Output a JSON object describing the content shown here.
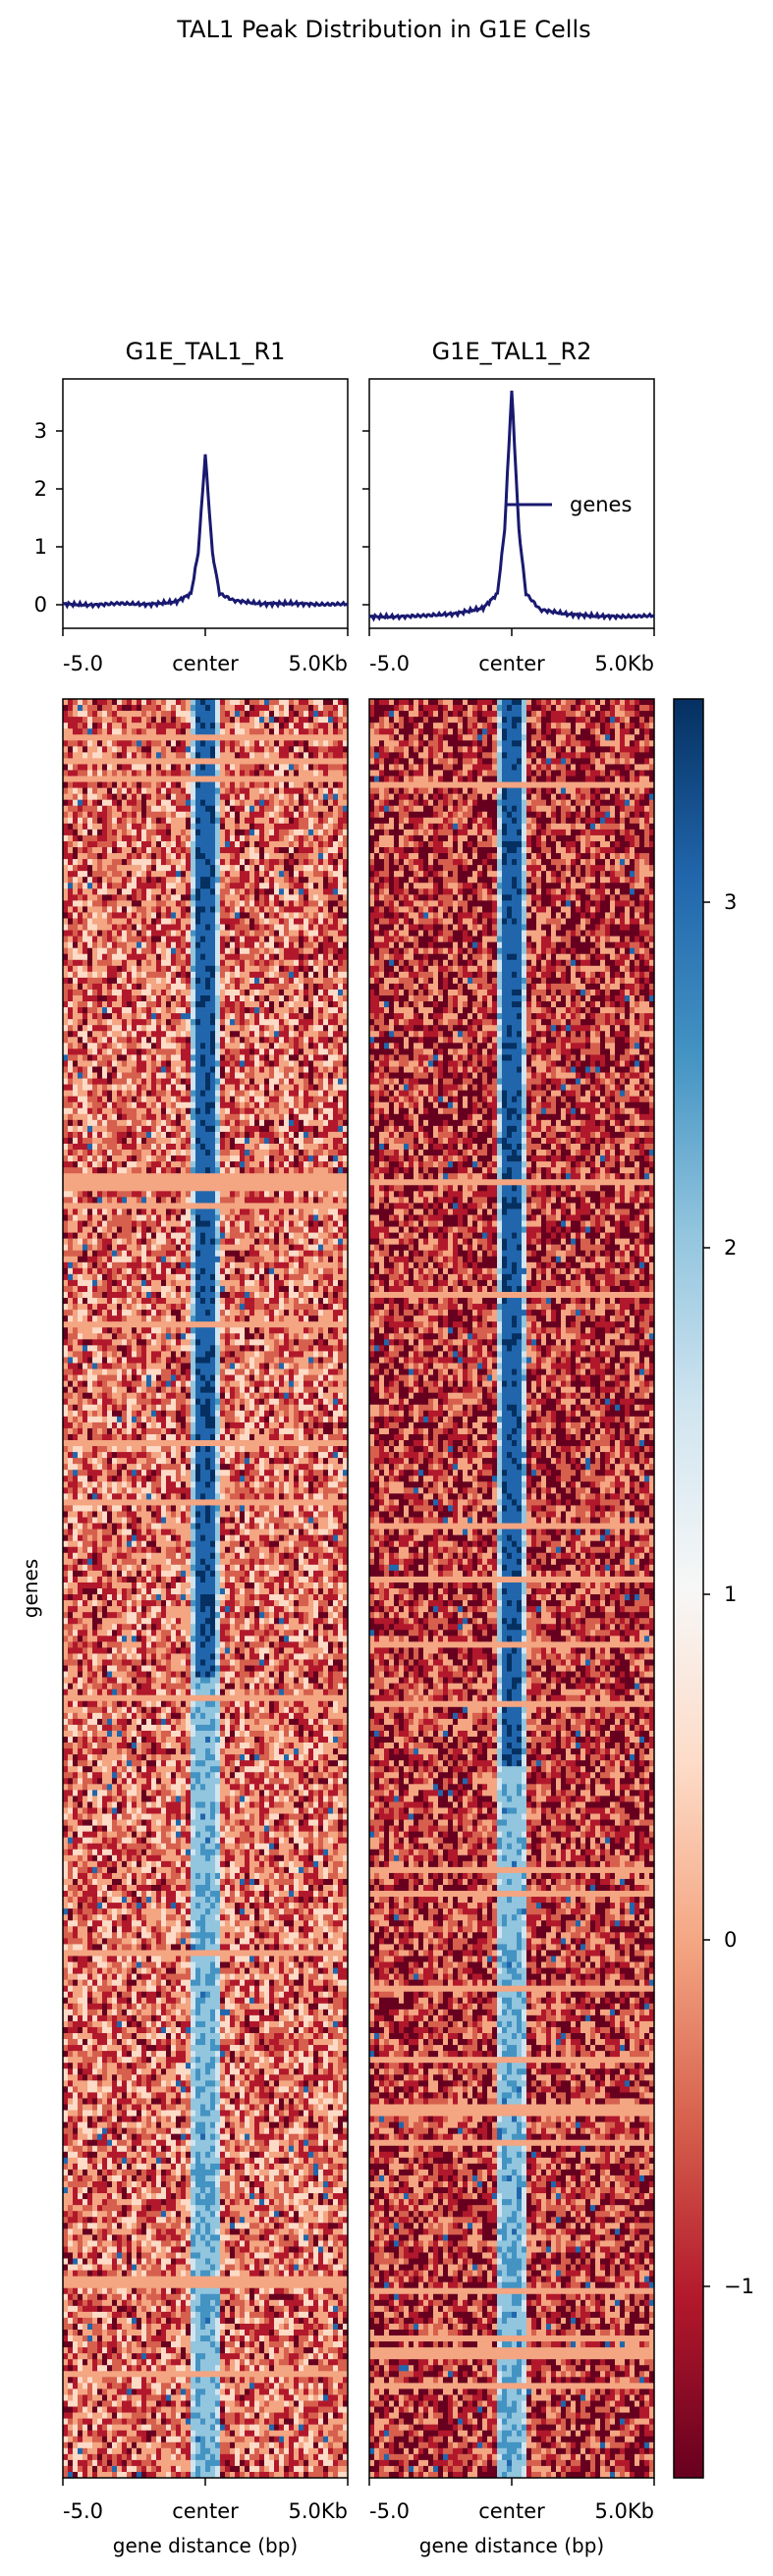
{
  "figure": {
    "title": "TAL1 Peak Distribution in G1E Cells"
  },
  "colors": {
    "profile_line": "#191970",
    "colormap": "RdBu",
    "axis": "#000000"
  },
  "chart_data": [
    {
      "type": "line",
      "panel": "profile",
      "title": "G1E_TAL1_R1",
      "x_ticks": [
        "-5.0",
        "center",
        "5.0Kb"
      ],
      "y_ticks": [
        "0",
        "1",
        "2",
        "3"
      ],
      "ylim": [
        -0.4,
        3.9
      ],
      "legend": "",
      "series": [
        {
          "x": [
            -5000,
            -4000,
            -3000,
            -2000,
            -1000,
            -500,
            -250,
            0,
            250,
            500,
            1000,
            2000,
            3000,
            4000,
            5000
          ],
          "values": [
            0.02,
            0.0,
            0.03,
            0.01,
            0.06,
            0.2,
            0.9,
            2.6,
            0.9,
            0.2,
            0.08,
            0.02,
            0.03,
            0.01,
            0.02
          ]
        }
      ]
    },
    {
      "type": "line",
      "panel": "profile",
      "title": "G1E_TAL1_R2",
      "x_ticks": [
        "-5.0",
        "center",
        "5.0Kb"
      ],
      "y_ticks": [
        "0",
        "1",
        "2",
        "3"
      ],
      "ylim": [
        -0.4,
        3.9
      ],
      "legend": "genes",
      "legend_position": "center-right",
      "series": [
        {
          "name": "genes",
          "x": [
            -5000,
            -4000,
            -3000,
            -2000,
            -1000,
            -500,
            -250,
            0,
            250,
            500,
            1000,
            2000,
            3000,
            4000,
            5000
          ],
          "values": [
            -0.2,
            -0.2,
            -0.18,
            -0.15,
            -0.05,
            0.2,
            1.3,
            3.7,
            1.3,
            0.2,
            -0.08,
            -0.16,
            -0.19,
            -0.2,
            -0.18
          ]
        }
      ]
    },
    {
      "type": "heatmap",
      "panel": "heatmap",
      "title": "",
      "xlabel": "gene distance (bp)",
      "ylabel": "genes",
      "x_ticks": [
        "-5.0",
        "center",
        "5.0Kb"
      ],
      "center_signal_strong_fraction": 0.55
    },
    {
      "type": "heatmap",
      "panel": "heatmap",
      "title": "",
      "xlabel": "gene distance (bp)",
      "ylabel": "",
      "x_ticks": [
        "-5.0",
        "center",
        "5.0Kb"
      ],
      "center_signal_strong_fraction": 0.6
    },
    {
      "type": "heatmap",
      "panel": "colorbar",
      "colormap": "RdBu",
      "range": [
        -1.5,
        3.6
      ],
      "ticks": [
        "3",
        "2",
        "1",
        "0",
        "−1"
      ],
      "tick_values": [
        3,
        2,
        1,
        0,
        -1
      ]
    }
  ]
}
